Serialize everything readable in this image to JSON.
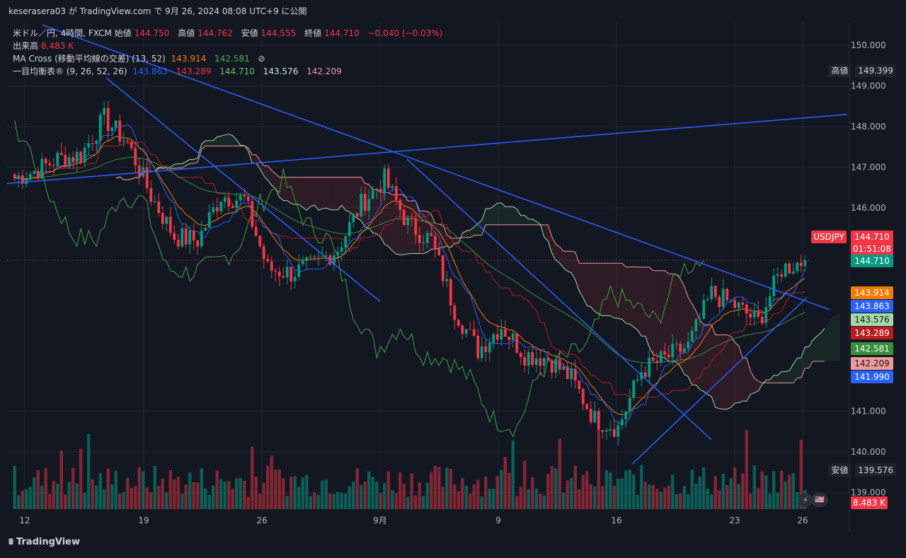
{
  "header": {
    "publisher": "keserasera03 が TradingView.com で 9月 26, 2024 08:08 UTC+9 に公開"
  },
  "legend": {
    "symbol_line": "米ドル／円, 4時間, FXCM",
    "open_label": "始値",
    "open": "144.750",
    "high_label": "高値",
    "high": "144.762",
    "low_label": "安値",
    "low": "144.555",
    "close_label": "終値",
    "close": "144.710",
    "change": "−0.040 (−0.03%)",
    "volume_label": "出来高",
    "volume": "8.483 K",
    "ma_label": "MA Cross (移動平均線の交差) (13, 52)",
    "ma_fast": "143.914",
    "ma_slow": "142.581",
    "ma_eye": "⊘",
    "ichimoku_label": "一目均衡表® (9, 26, 52, 26)",
    "ichimoku_values": [
      "143.863",
      "143.289",
      "144.710",
      "143.576",
      "142.209"
    ]
  },
  "price_axis": {
    "labels": [
      "150.000",
      "149.000",
      "148.000",
      "147.000",
      "146.000",
      "141.000",
      "140.000",
      "139.000"
    ],
    "high_badge_label": "高値",
    "high_badge_value": "149.399",
    "low_badge_label": "安値",
    "low_badge_value": "139.576",
    "symbol_badge": "USDJPY",
    "symbol_price": "144.710",
    "countdown": "01:51:08",
    "last_price": "144.710",
    "badges": [
      {
        "value": "143.914",
        "color": "#f57c00"
      },
      {
        "value": "143.863",
        "color": "#2962ff"
      },
      {
        "value": "143.576",
        "color": "#a5d6a7"
      },
      {
        "value": "143.289",
        "color": "#b71c1c"
      },
      {
        "value": "142.581",
        "color": "#388e3c"
      },
      {
        "value": "142.209",
        "color": "#ef9a9a"
      },
      {
        "value": "141.990",
        "color": "#2962ff"
      }
    ],
    "volume_badge": "8.483 K"
  },
  "time_axis": {
    "labels": [
      "12",
      "19",
      "26",
      "9月",
      "9",
      "16",
      "23",
      "26"
    ]
  },
  "brand": "TradingView",
  "colors": {
    "background": "#131722",
    "up": "#089981",
    "down": "#f23645",
    "ma_fast": "#f57c00",
    "ma_slow": "#388e3c",
    "tenkan": "#2962ff",
    "kijun": "#b71c1c",
    "chikou": "#43a047",
    "span_a": "#a5d6a7",
    "span_b": "#ef9a9a",
    "trendline": "#2962ff"
  },
  "chart_data": {
    "type": "candlestick",
    "title": "米ドル／円, 4時間, FXCM",
    "symbol": "USDJPY",
    "ylim": [
      138.5,
      150.5
    ],
    "x_ticks": [
      "12",
      "19",
      "26",
      "9月",
      "9",
      "16",
      "23",
      "26"
    ],
    "period_high": 149.399,
    "period_low": 139.576,
    "last_price": 144.71,
    "daily_closes": [
      {
        "date": "12",
        "close": 146.9
      },
      {
        "date": "13",
        "close": 147.2
      },
      {
        "date": "14",
        "close": 147.3
      },
      {
        "date": "15",
        "close": 148.2
      },
      {
        "date": "16",
        "close": 147.6
      },
      {
        "date": "19",
        "close": 146.3
      },
      {
        "date": "20",
        "close": 145.3
      },
      {
        "date": "21",
        "close": 145.2
      },
      {
        "date": "22",
        "close": 146.3
      },
      {
        "date": "23",
        "close": 146.2
      },
      {
        "date": "26",
        "close": 144.5
      },
      {
        "date": "27",
        "close": 144.4
      },
      {
        "date": "28",
        "close": 144.6
      },
      {
        "date": "29",
        "close": 145.0
      },
      {
        "date": "30",
        "close": 146.1
      },
      {
        "date": "9月",
        "close": 146.7
      },
      {
        "date": "3",
        "close": 145.6
      },
      {
        "date": "4",
        "close": 145.2
      },
      {
        "date": "5",
        "close": 143.5
      },
      {
        "date": "6",
        "close": 142.5
      },
      {
        "date": "9",
        "close": 143.1
      },
      {
        "date": "10",
        "close": 142.4
      },
      {
        "date": "11",
        "close": 142.3
      },
      {
        "date": "12",
        "close": 141.8
      },
      {
        "date": "13",
        "close": 140.8
      },
      {
        "date": "16",
        "close": 140.6
      },
      {
        "date": "17",
        "close": 142.0
      },
      {
        "date": "18",
        "close": 142.3
      },
      {
        "date": "19",
        "close": 142.6
      },
      {
        "date": "20",
        "close": 143.9
      },
      {
        "date": "23",
        "close": 143.6
      },
      {
        "date": "24",
        "close": 143.2
      },
      {
        "date": "25",
        "close": 144.5
      },
      {
        "date": "26",
        "close": 144.71
      }
    ]
  }
}
